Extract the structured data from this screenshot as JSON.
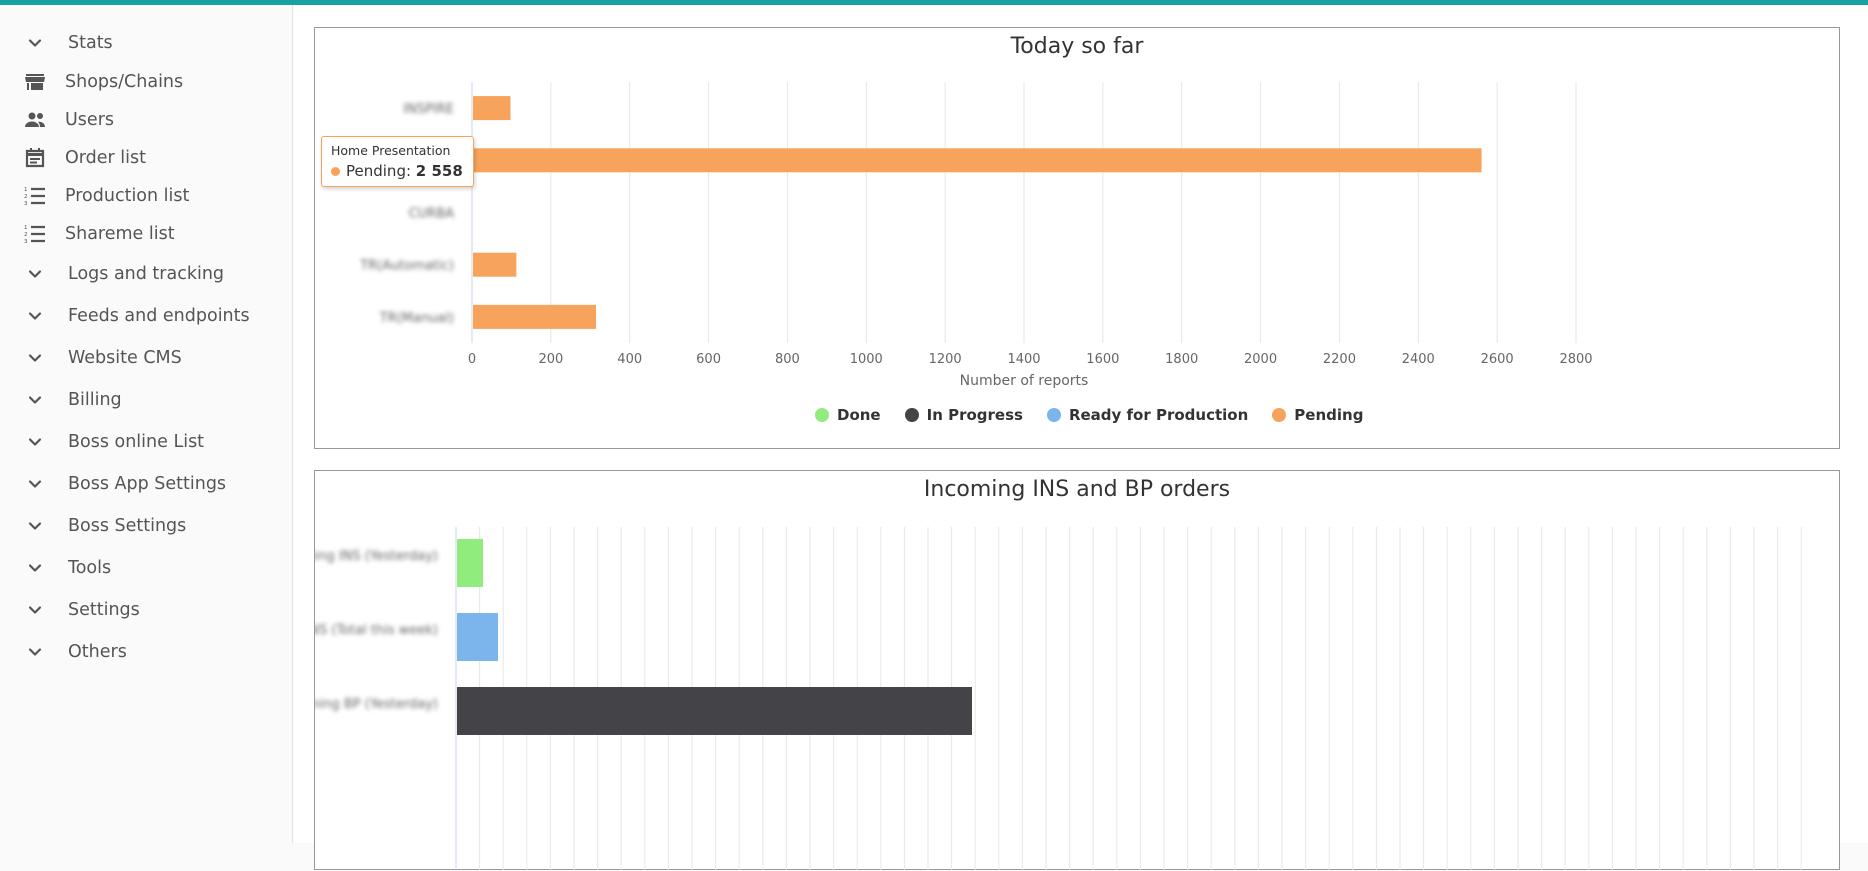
{
  "colors": {
    "accent_bar": "#17a2a2",
    "done": "#90ed7d",
    "in_progress": "#434348",
    "ready": "#7cb5ec",
    "pending": "#f7a35c"
  },
  "sidebar": {
    "items": [
      {
        "label": "Stats",
        "icon": "chevron-down-icon"
      },
      {
        "label": "Shops/Chains",
        "icon": "store-icon"
      },
      {
        "label": "Users",
        "icon": "people-icon"
      },
      {
        "label": "Order list",
        "icon": "calendar-icon"
      },
      {
        "label": "Production list",
        "icon": "numbered-list-icon"
      },
      {
        "label": "Shareme list",
        "icon": "numbered-list-icon"
      },
      {
        "label": "Logs and tracking",
        "icon": "chevron-down-icon"
      },
      {
        "label": "Feeds and endpoints",
        "icon": "chevron-down-icon"
      },
      {
        "label": "Website CMS",
        "icon": "chevron-down-icon"
      },
      {
        "label": "Billing",
        "icon": "chevron-down-icon"
      },
      {
        "label": "Boss online List",
        "icon": "chevron-down-icon"
      },
      {
        "label": "Boss App Settings",
        "icon": "chevron-down-icon"
      },
      {
        "label": "Boss Settings",
        "icon": "chevron-down-icon"
      },
      {
        "label": "Tools",
        "icon": "chevron-down-icon"
      },
      {
        "label": "Settings",
        "icon": "chevron-down-icon"
      },
      {
        "label": "Others",
        "icon": "chevron-down-icon"
      }
    ]
  },
  "chart_data": [
    {
      "type": "bar",
      "orientation": "horizontal",
      "title": "Today so far",
      "categories": [
        "INSPIRE",
        "Home Presentation",
        "CURBA",
        "TR(Automatic)",
        "TR(Manual)"
      ],
      "series": [
        {
          "name": "Done",
          "values": [
            0,
            0,
            0,
            0,
            0
          ]
        },
        {
          "name": "In Progress",
          "values": [
            0,
            0,
            0,
            0,
            0
          ]
        },
        {
          "name": "Ready for Production",
          "values": [
            0,
            0,
            0,
            0,
            0
          ]
        },
        {
          "name": "Pending",
          "values": [
            95,
            2558,
            0,
            110,
            312
          ]
        }
      ],
      "x_ticks": [
        "0",
        "200",
        "400",
        "600",
        "800",
        "1000",
        "1200",
        "1400",
        "1600",
        "1800",
        "2000",
        "2200",
        "2400",
        "2600",
        "2800"
      ],
      "xlim": [
        0,
        2800
      ],
      "xlabel": "Number of reports",
      "legend": [
        "Done",
        "In Progress",
        "Ready for Production",
        "Pending"
      ],
      "legend_position": "bottom-center",
      "grid": true,
      "tooltip": {
        "category": "Home Presentation",
        "series": "Pending",
        "value": "2 558"
      }
    },
    {
      "type": "bar",
      "orientation": "horizontal",
      "title": "Incoming INS and BP orders",
      "categories": [
        "Incoming INS (Yesterday)",
        "Incoming INS (Total this week)",
        "Incoming BP (Yesterday)"
      ],
      "values": [
        26,
        41,
        515
      ],
      "grid": true
    }
  ]
}
